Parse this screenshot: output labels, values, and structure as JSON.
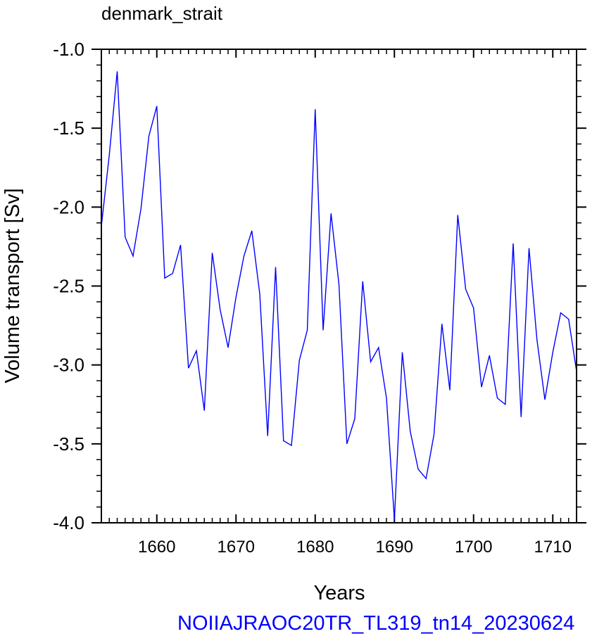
{
  "chart_data": {
    "type": "line",
    "title": "denmark_strait",
    "xlabel": "Years",
    "ylabel": "Volume transport [Sv]",
    "xlim": [
      1653,
      1713
    ],
    "ylim": [
      -4.0,
      -1.0
    ],
    "x_ticks": [
      1660,
      1670,
      1680,
      1690,
      1700,
      1710
    ],
    "y_ticks": [
      "-1.0",
      "-1.5",
      "-2.0",
      "-2.5",
      "-3.0",
      "-3.5",
      "-4.0"
    ],
    "grid": false,
    "series": [
      {
        "color": "#0000ff",
        "x": [
          1653,
          1654,
          1655,
          1656,
          1657,
          1658,
          1659,
          1660,
          1661,
          1662,
          1663,
          1664,
          1665,
          1666,
          1667,
          1668,
          1669,
          1670,
          1671,
          1672,
          1673,
          1674,
          1675,
          1676,
          1677,
          1678,
          1679,
          1680,
          1681,
          1682,
          1683,
          1684,
          1685,
          1686,
          1687,
          1688,
          1689,
          1690,
          1691,
          1692,
          1693,
          1694,
          1695,
          1696,
          1697,
          1698,
          1699,
          1700,
          1701,
          1702,
          1703,
          1704,
          1705,
          1706,
          1707,
          1708,
          1709,
          1710,
          1711,
          1712,
          1713
        ],
        "y": [
          -2.12,
          -1.67,
          -1.14,
          -2.19,
          -2.31,
          -2.01,
          -1.55,
          -1.36,
          -2.45,
          -2.42,
          -2.24,
          -3.02,
          -2.91,
          -3.29,
          -2.29,
          -2.65,
          -2.89,
          -2.57,
          -2.31,
          -2.15,
          -2.55,
          -3.45,
          -2.38,
          -3.48,
          -3.51,
          -2.97,
          -2.78,
          -1.38,
          -2.78,
          -2.04,
          -2.49,
          -3.5,
          -3.34,
          -2.47,
          -2.98,
          -2.89,
          -3.21,
          -3.98,
          -2.92,
          -3.42,
          -3.66,
          -3.72,
          -3.44,
          -2.74,
          -3.16,
          -2.05,
          -2.52,
          -2.64,
          -3.14,
          -2.94,
          -3.21,
          -3.25,
          -2.23,
          -3.33,
          -2.26,
          -2.84,
          -3.22,
          -2.92,
          -2.67,
          -2.71,
          -3.04
        ]
      }
    ]
  },
  "footer": {
    "text": "NOIIAJRAOC20TR_TL319_tn14_20230624",
    "color": "#0000ff"
  }
}
